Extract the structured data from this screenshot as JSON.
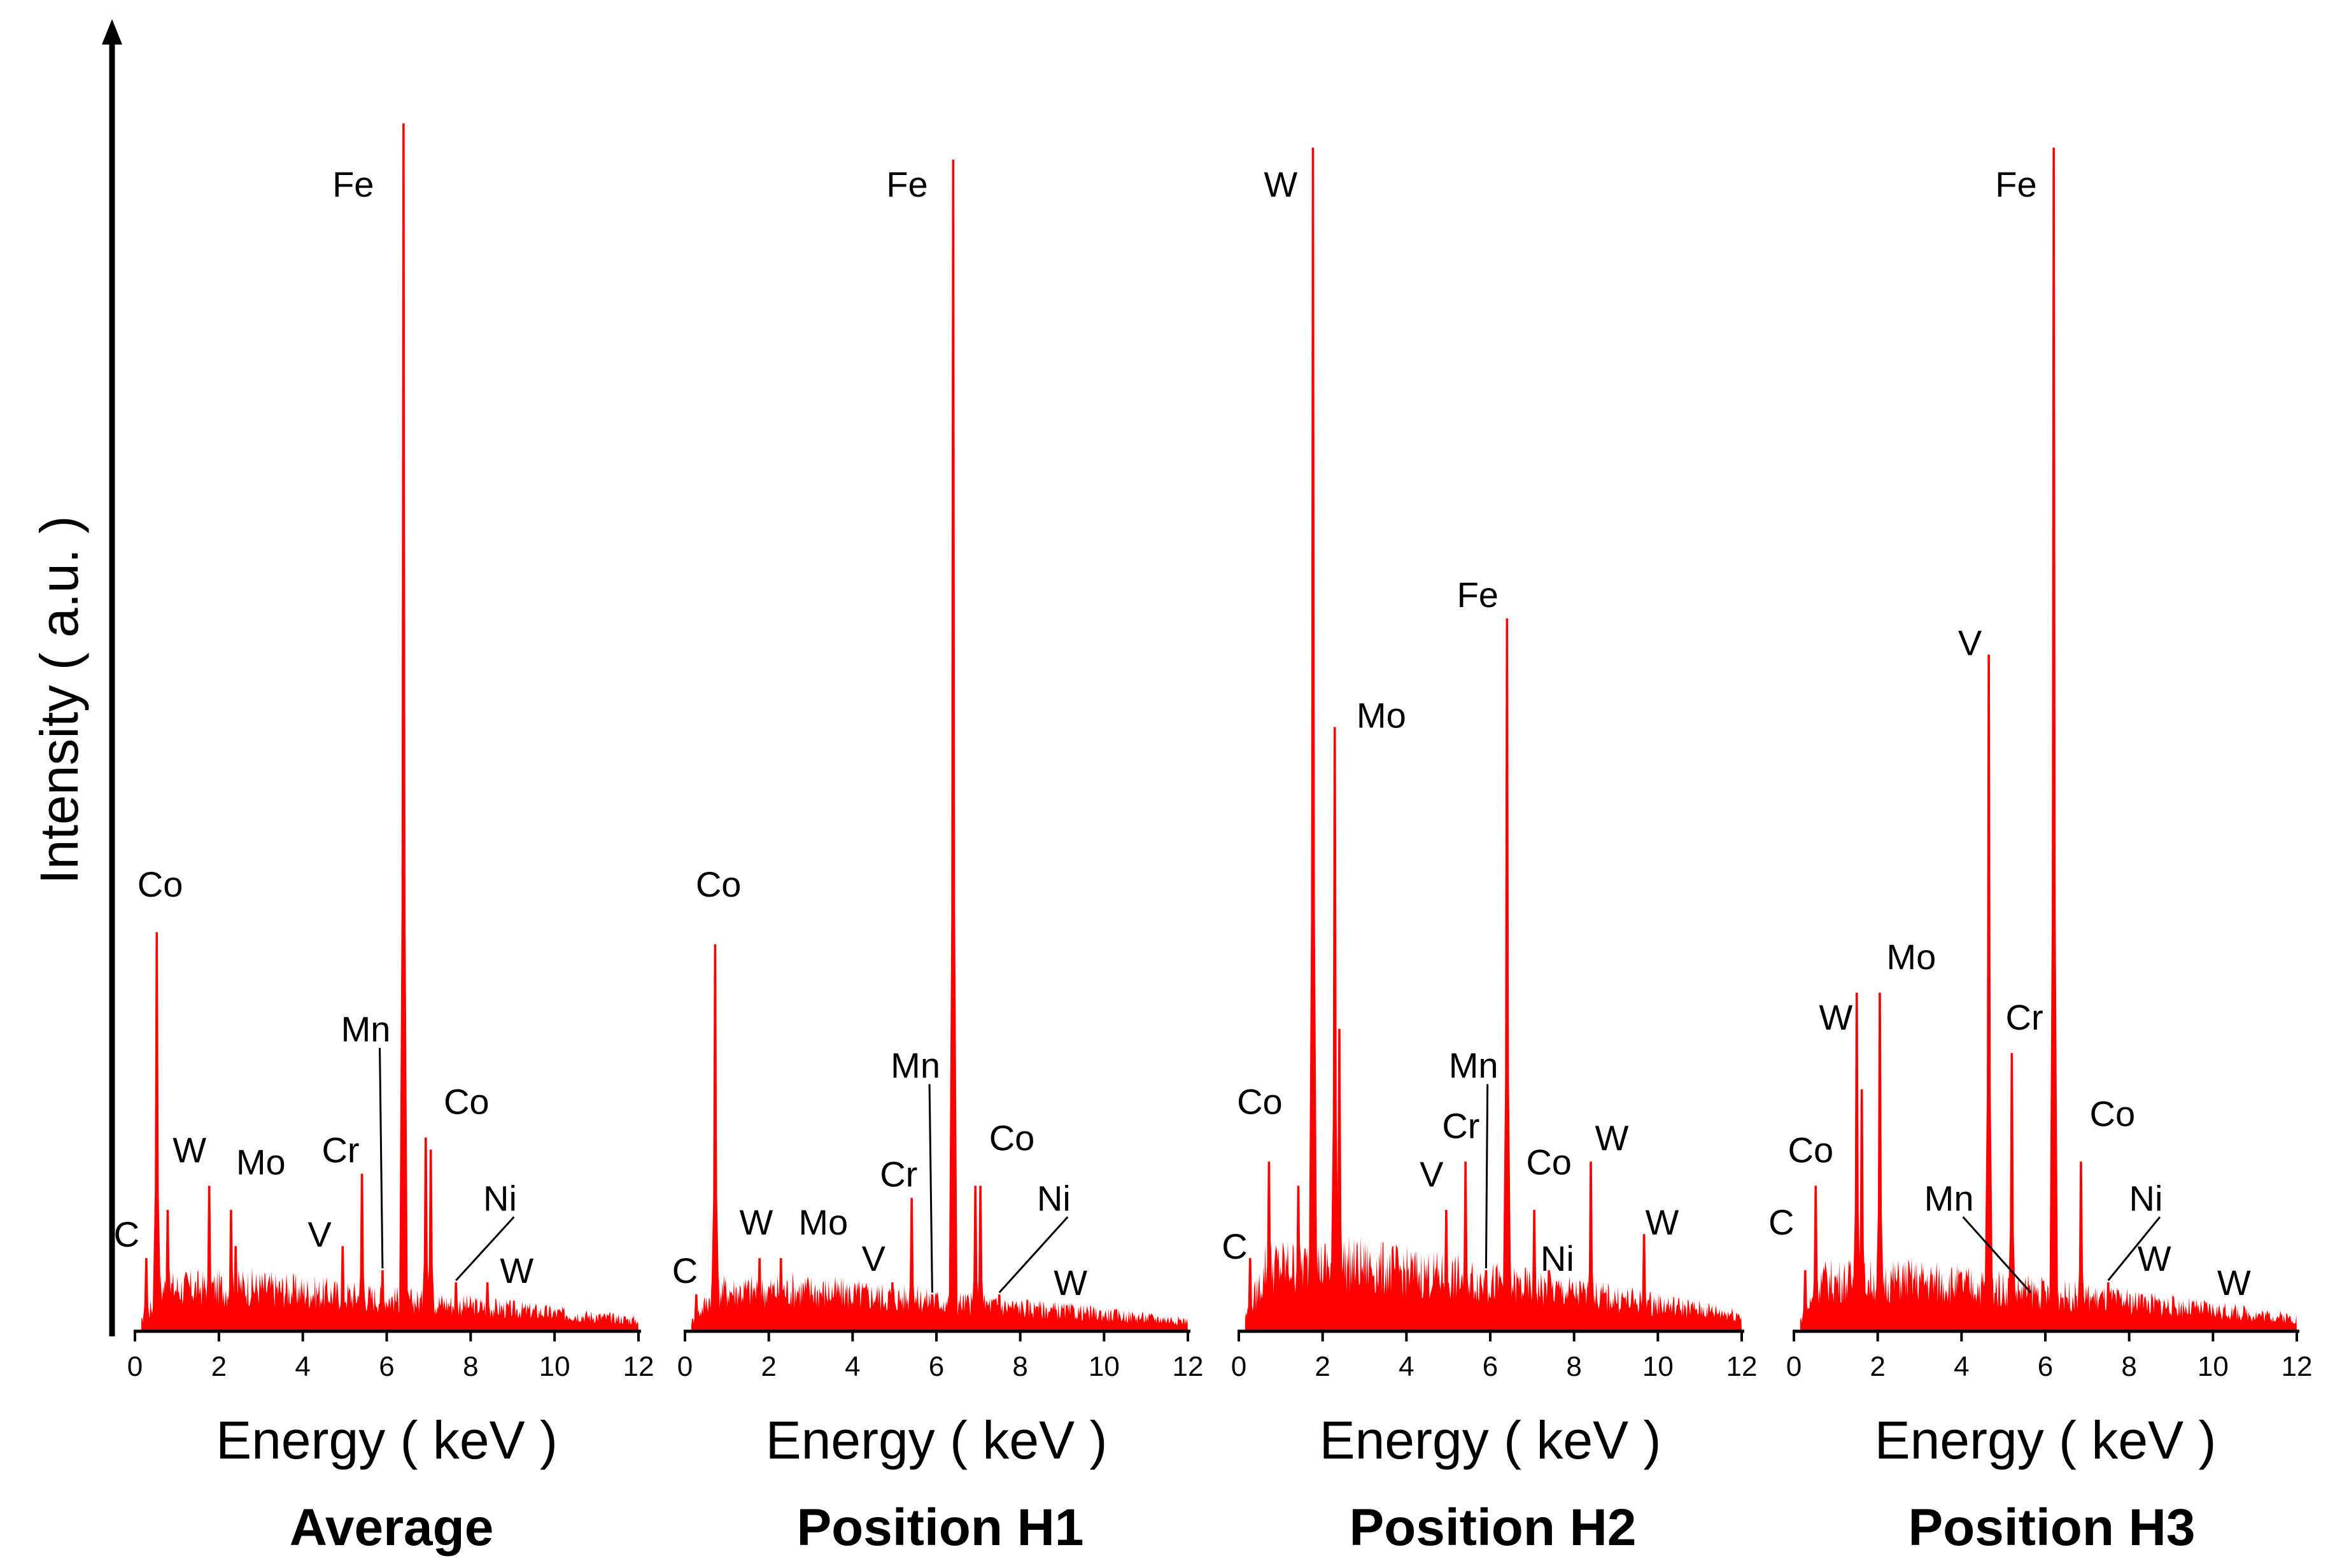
{
  "figure": {
    "ylabel": "Intensity ( a.u. )"
  },
  "colors": {
    "spectrum": "#ff0000",
    "axis": "#000000"
  },
  "chart_data": [
    {
      "type": "area",
      "title": "Average",
      "xlabel": "Energy ( keV )",
      "ylabel": "Intensity ( a.u. )",
      "xlim": [
        0,
        12
      ],
      "ylim": [
        0,
        100
      ],
      "xticks": [
        0,
        2,
        4,
        6,
        8,
        10,
        12
      ],
      "background": 3.0,
      "peaks": [
        {
          "x": 0.27,
          "y": 6
        },
        {
          "x": 0.52,
          "y": 33
        },
        {
          "x": 0.78,
          "y": 10
        },
        {
          "x": 1.77,
          "y": 12
        },
        {
          "x": 2.29,
          "y": 10
        },
        {
          "x": 2.4,
          "y": 7
        },
        {
          "x": 4.95,
          "y": 7
        },
        {
          "x": 5.41,
          "y": 13
        },
        {
          "x": 5.9,
          "y": 5
        },
        {
          "x": 6.4,
          "y": 100
        },
        {
          "x": 6.93,
          "y": 16
        },
        {
          "x": 7.05,
          "y": 15
        },
        {
          "x": 7.65,
          "y": 4
        },
        {
          "x": 8.4,
          "y": 4
        }
      ],
      "annotations": [
        {
          "label": "C",
          "x": 0.27,
          "y": 6,
          "lx": -0.2,
          "ly": 7
        },
        {
          "label": "Co",
          "x": 0.52,
          "y": 33,
          "lx": 0.6,
          "ly": 36
        },
        {
          "label": "W",
          "x": 1.77,
          "y": 12,
          "lx": 1.3,
          "ly": 14
        },
        {
          "label": "Mo",
          "x": 2.29,
          "y": 10,
          "lx": 3.0,
          "ly": 13
        },
        {
          "label": "V",
          "x": 4.95,
          "y": 7,
          "lx": 4.4,
          "ly": 7
        },
        {
          "label": "Cr",
          "x": 5.41,
          "y": 13,
          "lx": 4.9,
          "ly": 14
        },
        {
          "label": "Mn",
          "x": 5.9,
          "y": 5,
          "lx": 5.5,
          "ly": 24,
          "leader": true
        },
        {
          "label": "Fe",
          "x": 6.4,
          "y": 100,
          "lx": 5.2,
          "ly": 94
        },
        {
          "label": "Co",
          "x": 7.05,
          "y": 15,
          "lx": 7.9,
          "ly": 18
        },
        {
          "label": "Ni",
          "x": 7.65,
          "y": 4,
          "lx": 8.7,
          "ly": 10,
          "leader": true
        },
        {
          "label": "W",
          "x": 8.4,
          "y": 4,
          "lx": 9.1,
          "ly": 4
        }
      ]
    },
    {
      "type": "area",
      "title": "Position H1",
      "xlabel": "Energy ( keV )",
      "ylabel": "Intensity ( a.u. )",
      "xlim": [
        0,
        12
      ],
      "ylim": [
        0,
        100
      ],
      "xticks": [
        0,
        2,
        4,
        6,
        8,
        10,
        12
      ],
      "background": 2.8,
      "peaks": [
        {
          "x": 0.27,
          "y": 3
        },
        {
          "x": 0.72,
          "y": 32
        },
        {
          "x": 1.78,
          "y": 6
        },
        {
          "x": 2.29,
          "y": 6
        },
        {
          "x": 4.95,
          "y": 4
        },
        {
          "x": 5.41,
          "y": 11
        },
        {
          "x": 5.9,
          "y": 3
        },
        {
          "x": 6.4,
          "y": 97
        },
        {
          "x": 6.93,
          "y": 12
        },
        {
          "x": 7.05,
          "y": 12
        },
        {
          "x": 7.5,
          "y": 3
        },
        {
          "x": 8.4,
          "y": 2
        }
      ],
      "annotations": [
        {
          "label": "C",
          "x": 0.27,
          "y": 3,
          "lx": 0.0,
          "ly": 4
        },
        {
          "label": "Co",
          "x": 0.72,
          "y": 32,
          "lx": 0.8,
          "ly": 36
        },
        {
          "label": "W",
          "x": 1.78,
          "y": 6,
          "lx": 1.7,
          "ly": 8
        },
        {
          "label": "Mo",
          "x": 2.29,
          "y": 6,
          "lx": 3.3,
          "ly": 8
        },
        {
          "label": "V",
          "x": 4.95,
          "y": 4,
          "lx": 4.5,
          "ly": 5
        },
        {
          "label": "Cr",
          "x": 5.41,
          "y": 11,
          "lx": 5.1,
          "ly": 12
        },
        {
          "label": "Mn",
          "x": 5.9,
          "y": 3,
          "lx": 5.5,
          "ly": 21,
          "leader": true
        },
        {
          "label": "Fe",
          "x": 6.4,
          "y": 97,
          "lx": 5.3,
          "ly": 94
        },
        {
          "label": "Co",
          "x": 7.05,
          "y": 12,
          "lx": 7.8,
          "ly": 15
        },
        {
          "label": "Ni",
          "x": 7.5,
          "y": 3,
          "lx": 8.8,
          "ly": 10,
          "leader": true
        },
        {
          "label": "W",
          "x": 8.4,
          "y": 2,
          "lx": 9.2,
          "ly": 3
        }
      ]
    },
    {
      "type": "area",
      "title": "Position H2",
      "xlabel": "Energy ( keV )",
      "ylabel": "Intensity ( a.u. )",
      "xlim": [
        0,
        12
      ],
      "ylim": [
        0,
        100
      ],
      "xticks": [
        0,
        2,
        4,
        6,
        8,
        10,
        12
      ],
      "background": 4.5,
      "peaks": [
        {
          "x": 0.27,
          "y": 6
        },
        {
          "x": 0.72,
          "y": 14
        },
        {
          "x": 1.42,
          "y": 12
        },
        {
          "x": 1.77,
          "y": 98
        },
        {
          "x": 2.29,
          "y": 50
        },
        {
          "x": 2.4,
          "y": 25
        },
        {
          "x": 4.95,
          "y": 10
        },
        {
          "x": 5.41,
          "y": 14
        },
        {
          "x": 5.9,
          "y": 5
        },
        {
          "x": 6.4,
          "y": 59
        },
        {
          "x": 7.05,
          "y": 10
        },
        {
          "x": 7.4,
          "y": 5
        },
        {
          "x": 8.4,
          "y": 14
        },
        {
          "x": 9.67,
          "y": 8
        }
      ],
      "annotations": [
        {
          "label": "C",
          "x": 0.27,
          "y": 6,
          "lx": -0.1,
          "ly": 6
        },
        {
          "label": "Co",
          "x": 0.72,
          "y": 14,
          "lx": 0.5,
          "ly": 18
        },
        {
          "label": "W",
          "x": 1.77,
          "y": 98,
          "lx": 1.0,
          "ly": 94
        },
        {
          "label": "Mo",
          "x": 2.29,
          "y": 50,
          "lx": 3.4,
          "ly": 50
        },
        {
          "label": "V",
          "x": 4.95,
          "y": 10,
          "lx": 4.6,
          "ly": 12
        },
        {
          "label": "Cr",
          "x": 5.41,
          "y": 14,
          "lx": 5.3,
          "ly": 16
        },
        {
          "label": "Mn",
          "x": 5.9,
          "y": 5,
          "lx": 5.6,
          "ly": 21,
          "leader": true
        },
        {
          "label": "Fe",
          "x": 6.4,
          "y": 59,
          "lx": 5.7,
          "ly": 60
        },
        {
          "label": "Co",
          "x": 7.05,
          "y": 10,
          "lx": 7.4,
          "ly": 13
        },
        {
          "label": "Ni",
          "x": 7.4,
          "y": 5,
          "lx": 7.6,
          "ly": 5
        },
        {
          "label": "W",
          "x": 8.4,
          "y": 14,
          "lx": 8.9,
          "ly": 15
        },
        {
          "label": "W",
          "x": 9.67,
          "y": 8,
          "lx": 10.1,
          "ly": 8
        }
      ]
    },
    {
      "type": "area",
      "title": "Position H3",
      "xlabel": "Energy ( keV )",
      "ylabel": "Intensity ( a.u. )",
      "xlim": [
        0,
        12
      ],
      "ylim": [
        0,
        100
      ],
      "xticks": [
        0,
        2,
        4,
        6,
        8,
        10,
        12
      ],
      "background": 3.5,
      "peaks": [
        {
          "x": 0.27,
          "y": 5
        },
        {
          "x": 0.52,
          "y": 12
        },
        {
          "x": 1.5,
          "y": 28
        },
        {
          "x": 1.62,
          "y": 20
        },
        {
          "x": 2.05,
          "y": 28
        },
        {
          "x": 4.65,
          "y": 56
        },
        {
          "x": 5.2,
          "y": 23
        },
        {
          "x": 5.65,
          "y": 3
        },
        {
          "x": 6.2,
          "y": 98
        },
        {
          "x": 6.85,
          "y": 14
        },
        {
          "x": 7.5,
          "y": 4
        },
        {
          "x": 8.3,
          "y": 3
        },
        {
          "x": 9.6,
          "y": 2
        }
      ],
      "annotations": [
        {
          "label": "C",
          "x": 0.27,
          "y": 5,
          "lx": -0.3,
          "ly": 8
        },
        {
          "label": "Co",
          "x": 0.52,
          "y": 12,
          "lx": 0.4,
          "ly": 14
        },
        {
          "label": "W",
          "x": 1.5,
          "y": 28,
          "lx": 1.0,
          "ly": 25
        },
        {
          "label": "Mo",
          "x": 2.05,
          "y": 28,
          "lx": 2.8,
          "ly": 30
        },
        {
          "label": "V",
          "x": 4.65,
          "y": 56,
          "lx": 4.2,
          "ly": 56
        },
        {
          "label": "Cr",
          "x": 5.2,
          "y": 23,
          "lx": 5.5,
          "ly": 25
        },
        {
          "label": "Mn",
          "x": 5.65,
          "y": 3,
          "lx": 3.7,
          "ly": 10,
          "leader": true
        },
        {
          "label": "Fe",
          "x": 6.2,
          "y": 98,
          "lx": 5.3,
          "ly": 94
        },
        {
          "label": "Co",
          "x": 6.85,
          "y": 14,
          "lx": 7.6,
          "ly": 17
        },
        {
          "label": "Ni",
          "x": 7.5,
          "y": 4,
          "lx": 8.4,
          "ly": 10,
          "leader": true
        },
        {
          "label": "W",
          "x": 8.3,
          "y": 3,
          "lx": 8.6,
          "ly": 5
        },
        {
          "label": "W",
          "x": 9.6,
          "y": 2,
          "lx": 10.5,
          "ly": 3
        }
      ]
    }
  ]
}
